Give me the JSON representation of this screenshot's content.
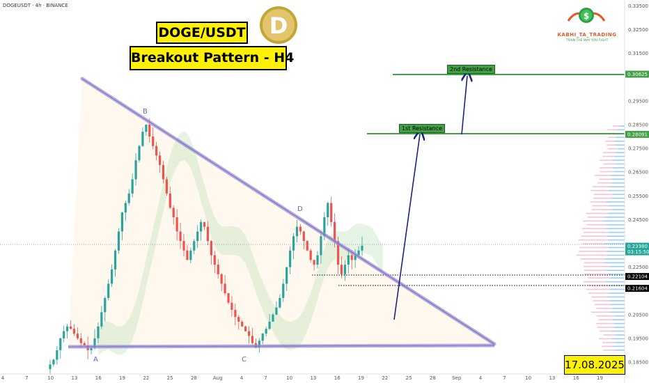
{
  "header": {
    "symbol": "DOGEUSDT · 4h · BINANCE"
  },
  "titles": {
    "pair": "DOGE/USDT",
    "pattern": "Breakout Pattern - H4",
    "date": "17.08.2025"
  },
  "brand": {
    "name": "KABHI_TA_TRADING",
    "tagline": "TRAIN THE WAY YOU FIGHT",
    "icon": "dollar-coin-icon"
  },
  "coin_icon": "dogecoin-logo-icon",
  "colors": {
    "bull": "#26a69a",
    "bear": "#ef5350",
    "trendline": "#9b8fd6",
    "resistance": "#43a047",
    "arrow": "#1a237e",
    "cloud_green": "#a5d6a7",
    "cloud_red": "#ffcdd2",
    "volume_profile_blue": "#42a5f5",
    "volume_profile_pink": "#f48fb1"
  },
  "chart_data": {
    "type": "candlestick",
    "ylim": [
      0.18,
      0.3375
    ],
    "y_ticks": [
      "0.33500",
      "0.32500",
      "0.31500",
      "0.30625",
      "0.29500",
      "0.28500",
      "0.28091",
      "0.27500",
      "0.26500",
      "0.25500",
      "0.24500",
      "0.23380",
      "0.22500",
      "0.22104",
      "0.21604",
      "0.20500",
      "0.19500",
      "0.18500"
    ],
    "x_ticks": [
      "4",
      "7",
      "10",
      "13",
      "16",
      "19",
      "22",
      "25",
      "28",
      "Aug",
      "4",
      "7",
      "10",
      "13",
      "16",
      "19",
      "22",
      "25",
      "28",
      "Sep",
      "4",
      "7",
      "10",
      "13",
      "16",
      "19"
    ],
    "point_labels": [
      {
        "label": "A",
        "price": 0.1895
      },
      {
        "label": "B",
        "price": 0.288
      },
      {
        "label": "C",
        "price": 0.1895
      },
      {
        "label": "D",
        "price": 0.245
      }
    ],
    "resistance_levels": [
      {
        "name": "1st Resistance",
        "price": 0.28091
      },
      {
        "name": "2nd Resistance",
        "price": 0.30625
      }
    ],
    "support_levels": [
      0.22104,
      0.21604
    ],
    "current_price": "0.23380",
    "countdown": "03:15:50",
    "price_tags": [
      "0.30625",
      "0.28091",
      "0.23380",
      "0.22104",
      "0.21604"
    ],
    "closes": [
      0.184,
      0.186,
      0.19,
      0.195,
      0.198,
      0.2,
      0.199,
      0.197,
      0.195,
      0.193,
      0.192,
      0.19,
      0.191,
      0.195,
      0.2,
      0.206,
      0.212,
      0.218,
      0.224,
      0.232,
      0.24,
      0.248,
      0.252,
      0.256,
      0.262,
      0.27,
      0.276,
      0.282,
      0.285,
      0.28,
      0.276,
      0.272,
      0.268,
      0.262,
      0.256,
      0.25,
      0.246,
      0.24,
      0.236,
      0.232,
      0.228,
      0.232,
      0.236,
      0.24,
      0.244,
      0.242,
      0.236,
      0.23,
      0.226,
      0.222,
      0.218,
      0.214,
      0.21,
      0.207,
      0.204,
      0.202,
      0.2,
      0.198,
      0.196,
      0.193,
      0.191,
      0.194,
      0.197,
      0.199,
      0.202,
      0.205,
      0.208,
      0.212,
      0.218,
      0.225,
      0.232,
      0.238,
      0.242,
      0.24,
      0.236,
      0.232,
      0.228,
      0.226,
      0.23,
      0.238,
      0.246,
      0.252,
      0.244,
      0.236,
      0.226,
      0.222,
      0.226,
      0.23,
      0.228,
      0.23,
      0.232,
      0.234
    ],
    "trendlines": {
      "descending": {
        "from": "B",
        "to": "triangle-apex"
      },
      "base": {
        "price": 0.1895
      }
    }
  }
}
